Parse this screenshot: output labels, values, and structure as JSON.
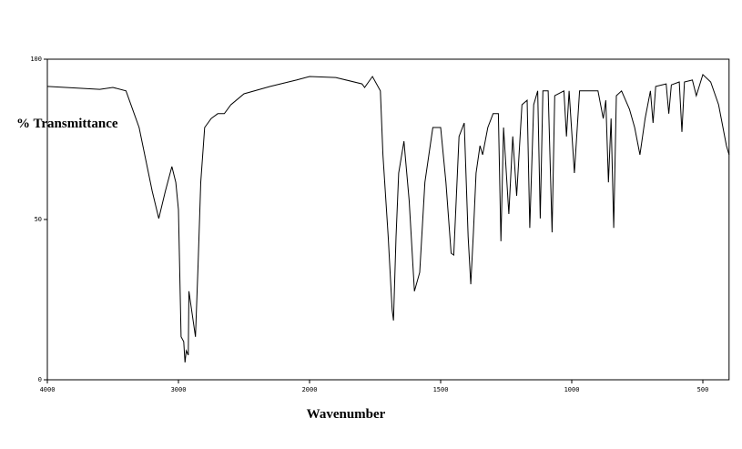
{
  "chart_data": {
    "type": "line",
    "y_label": "% Transmittance",
    "x_label": "Wavenumber",
    "xlim": [
      4000,
      400
    ],
    "xticks": [
      4000,
      3000,
      2000,
      1500,
      1000,
      500
    ],
    "ylim": [
      0,
      100
    ],
    "yticks": [
      0,
      50,
      100
    ],
    "grid": false,
    "series": [
      {
        "color": "#000000",
        "x": [
          4000,
          3600,
          3500,
          3400,
          3300,
          3200,
          3150,
          3100,
          3050,
          3020,
          3000,
          2980,
          2960,
          2950,
          2940,
          2925,
          2920,
          2900,
          2870,
          2850,
          2830,
          2800,
          2750,
          2700,
          2650,
          2600,
          2500,
          2300,
          2100,
          2000,
          1900,
          1800,
          1790,
          1760,
          1730,
          1720,
          1700,
          1685,
          1680,
          1670,
          1660,
          1640,
          1620,
          1600,
          1580,
          1560,
          1530,
          1500,
          1480,
          1460,
          1450,
          1430,
          1410,
          1395,
          1385,
          1375,
          1365,
          1350,
          1340,
          1320,
          1300,
          1280,
          1270,
          1260,
          1240,
          1225,
          1210,
          1190,
          1170,
          1160,
          1145,
          1130,
          1120,
          1110,
          1090,
          1075,
          1065,
          1030,
          1020,
          1010,
          990,
          970,
          930,
          900,
          880,
          870,
          860,
          850,
          840,
          830,
          810,
          780,
          760,
          740,
          720,
          700,
          690,
          680,
          640,
          630,
          620,
          590,
          580,
          570,
          540,
          525,
          500,
          470,
          440,
          410,
          400
        ],
        "values": [
          91.5,
          90.6,
          91.2,
          90.1,
          78.7,
          58.8,
          50.3,
          58.8,
          66.5,
          61.6,
          53.1,
          13.4,
          11.9,
          5.4,
          9.1,
          7.7,
          27.6,
          21.9,
          13.4,
          36.1,
          61.6,
          78.7,
          81.5,
          83.0,
          83.0,
          85.8,
          89.2,
          91.5,
          93.5,
          94.6,
          94.3,
          92.3,
          91.2,
          94.6,
          90.1,
          70.2,
          44.6,
          21.9,
          18.5,
          44.6,
          64.5,
          74.4,
          56.0,
          27.6,
          33.5,
          61.6,
          78.7,
          78.7,
          61.6,
          39.5,
          38.9,
          75.9,
          80.1,
          44.6,
          29.8,
          46.0,
          64.5,
          73.0,
          70.2,
          78.7,
          83.0,
          83.0,
          43.2,
          78.7,
          51.7,
          75.9,
          57.4,
          85.8,
          87.2,
          47.4,
          85.8,
          90.1,
          50.3,
          90.1,
          90.1,
          46.0,
          88.6,
          90.1,
          75.9,
          90.1,
          64.5,
          90.1,
          90.1,
          90.1,
          81.5,
          87.2,
          61.6,
          81.5,
          47.4,
          88.6,
          90.1,
          84.4,
          78.7,
          70.2,
          81.5,
          90.1,
          80.1,
          91.5,
          92.3,
          83.0,
          92.0,
          92.9,
          77.3,
          92.9,
          93.5,
          88.6,
          95.2,
          92.9,
          85.8,
          73.0,
          70.2
        ]
      }
    ]
  }
}
